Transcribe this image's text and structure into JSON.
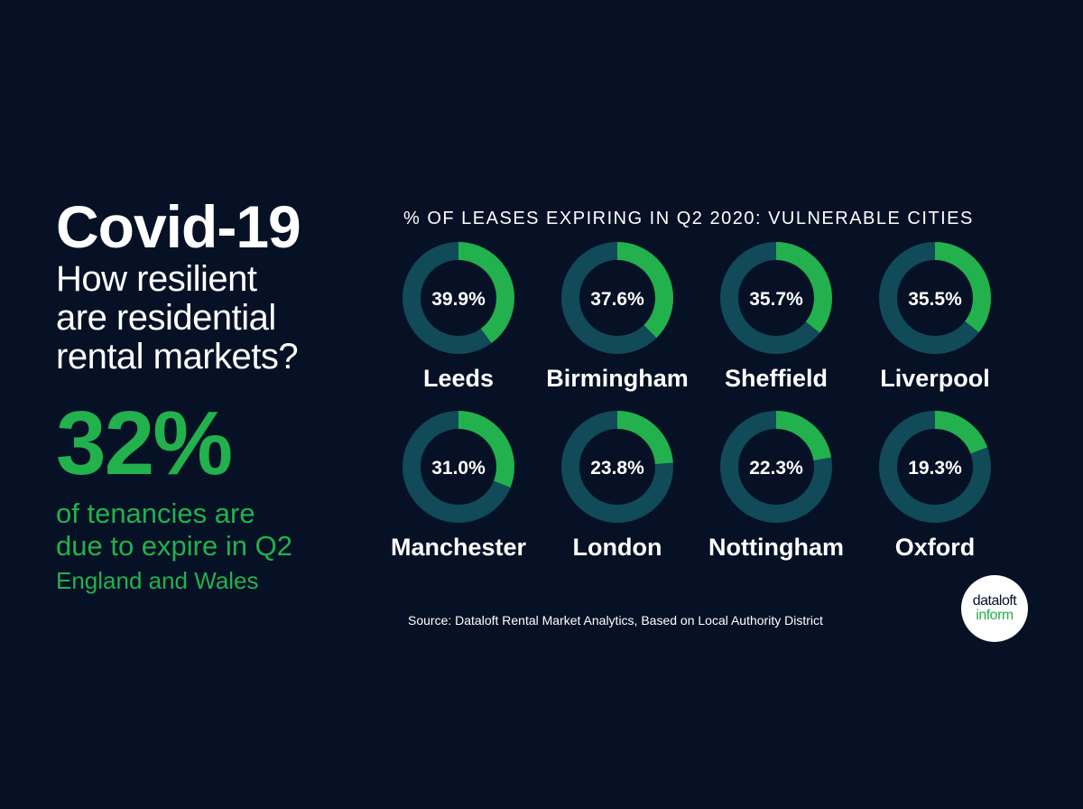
{
  "headline": {
    "title": "Covid-19",
    "subtitle_lines": [
      "How resilient",
      "are residential",
      "rental markets?"
    ]
  },
  "stat": {
    "value": "32%",
    "desc_lines": [
      "of tenancies are",
      "due to expire in Q2"
    ],
    "region": "England and Wales"
  },
  "chart_title": "% OF LEASES EXPIRING IN Q2 2020: VULNERABLE CITIES",
  "chart_data": {
    "type": "pie",
    "title": "% OF LEASES EXPIRING IN Q2 2020: VULNERABLE CITIES",
    "categories": [
      "Leeds",
      "Birmingham",
      "Sheffield",
      "Liverpool",
      "Manchester",
      "London",
      "Nottingham",
      "Oxford"
    ],
    "values": [
      39.9,
      37.6,
      35.7,
      35.5,
      31.0,
      23.8,
      22.3,
      19.3
    ],
    "value_labels": [
      "39.9%",
      "37.6%",
      "35.7%",
      "35.5%",
      "31.0%",
      "23.8%",
      "22.3%",
      "19.3%"
    ],
    "ylim": [
      0,
      100
    ]
  },
  "colors": {
    "background": "#061126",
    "highlight": "#22b14c",
    "ring": "#114a58",
    "text": "#ffffff"
  },
  "source": "Source: Dataloft Rental Market Analytics, Based on Local Authority District",
  "logo": {
    "line1": "dataloft",
    "line2": "inform"
  }
}
